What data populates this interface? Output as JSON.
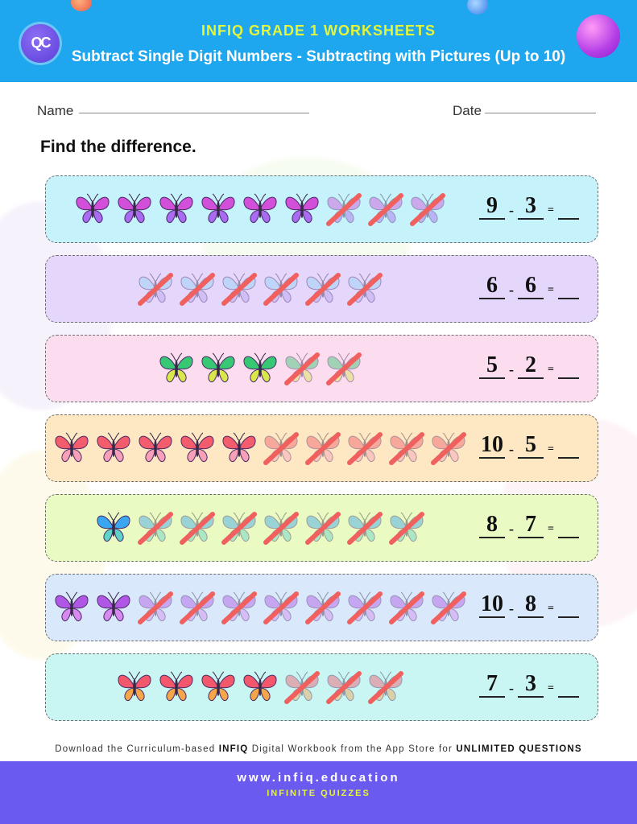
{
  "header": {
    "grade": "INFIQ GRADE 1 WORKSHEETS",
    "title": "Subtract Single Digit Numbers - Subtracting with Pictures (Up to 10)",
    "logo_text": "QC"
  },
  "form": {
    "name_label": "Name",
    "date_label": "Date"
  },
  "instruction": "Find the difference.",
  "minus": "-",
  "equals": "=",
  "problems": [
    {
      "a": "9",
      "b": "3",
      "total": 9,
      "crossed": 3,
      "bg": "#c6f2fb",
      "wing": "#d14fd9",
      "wing2": "#a86bf1"
    },
    {
      "a": "6",
      "b": "6",
      "total": 6,
      "crossed": 6,
      "bg": "#e5d6fb",
      "wing": "#8fd3f5",
      "wing2": "#b8a4f0"
    },
    {
      "a": "5",
      "b": "2",
      "total": 5,
      "crossed": 2,
      "bg": "#fcdcef",
      "wing": "#36c873",
      "wing2": "#d8e84a"
    },
    {
      "a": "10",
      "b": "5",
      "total": 10,
      "crossed": 5,
      "bg": "#fde8c3",
      "wing": "#f25c6c",
      "wing2": "#f8a0b8"
    },
    {
      "a": "8",
      "b": "7",
      "total": 8,
      "crossed": 7,
      "bg": "#e9fac2",
      "wing": "#3aa6f0",
      "wing2": "#5ed3c8"
    },
    {
      "a": "10",
      "b": "8",
      "total": 10,
      "crossed": 8,
      "bg": "#d9e9fb",
      "wing": "#b157e6",
      "wing2": "#d68af0"
    },
    {
      "a": "7",
      "b": "3",
      "total": 7,
      "crossed": 3,
      "bg": "#c9f6f3",
      "wing": "#f2576b",
      "wing2": "#f5a64a"
    }
  ],
  "promo": {
    "prefix": "Download the Curriculum-based",
    "brand": "INFIQ",
    "middle": "Digital Workbook from the App Store for",
    "emphasis": "UNLIMITED QUESTIONS"
  },
  "footer": {
    "url": "www.infiq.education",
    "tagline": "INFINITE QUIZZES"
  },
  "colors": {
    "header_bg": "#1ea7ee",
    "footer_bg": "#6a5af0",
    "accent_yellow": "#e4f53a",
    "cross": "#f0605e"
  },
  "icons": [
    "butterfly-icon",
    "cross-out-mark"
  ]
}
